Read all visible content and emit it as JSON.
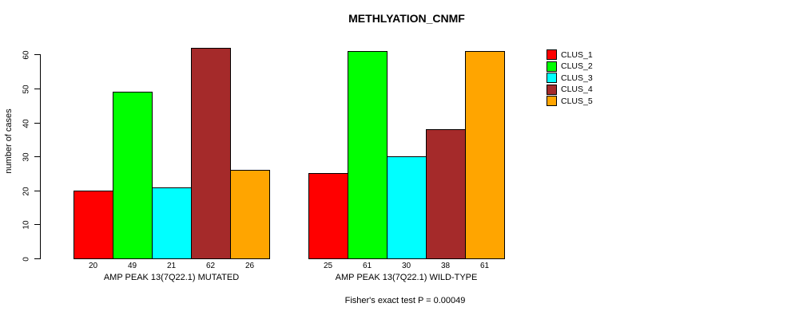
{
  "chart_data": {
    "type": "bar",
    "title": "METHLYATION_CNMF",
    "ylabel": "number of cases",
    "yticks": [
      0,
      10,
      20,
      30,
      40,
      50,
      60
    ],
    "ylim": [
      0,
      62
    ],
    "grid": false,
    "legend_position": "right",
    "clusters": [
      {
        "label": "CLUS_1",
        "color": "#FF0000"
      },
      {
        "label": "CLUS_2",
        "color": "#00FF00"
      },
      {
        "label": "CLUS_3",
        "color": "#00FFFF"
      },
      {
        "label": "CLUS_4",
        "color": "#A52A2A"
      },
      {
        "label": "CLUS_5",
        "color": "#FFA500"
      }
    ],
    "groups": [
      {
        "label": "AMP PEAK 13(7Q22.1) MUTATED",
        "values": [
          20,
          49,
          21,
          62,
          26
        ]
      },
      {
        "label": "AMP PEAK 13(7Q22.1) WILD-TYPE",
        "values": [
          25,
          61,
          30,
          38,
          61
        ]
      }
    ],
    "caption": "Fisher's exact test P = 0.00049"
  }
}
